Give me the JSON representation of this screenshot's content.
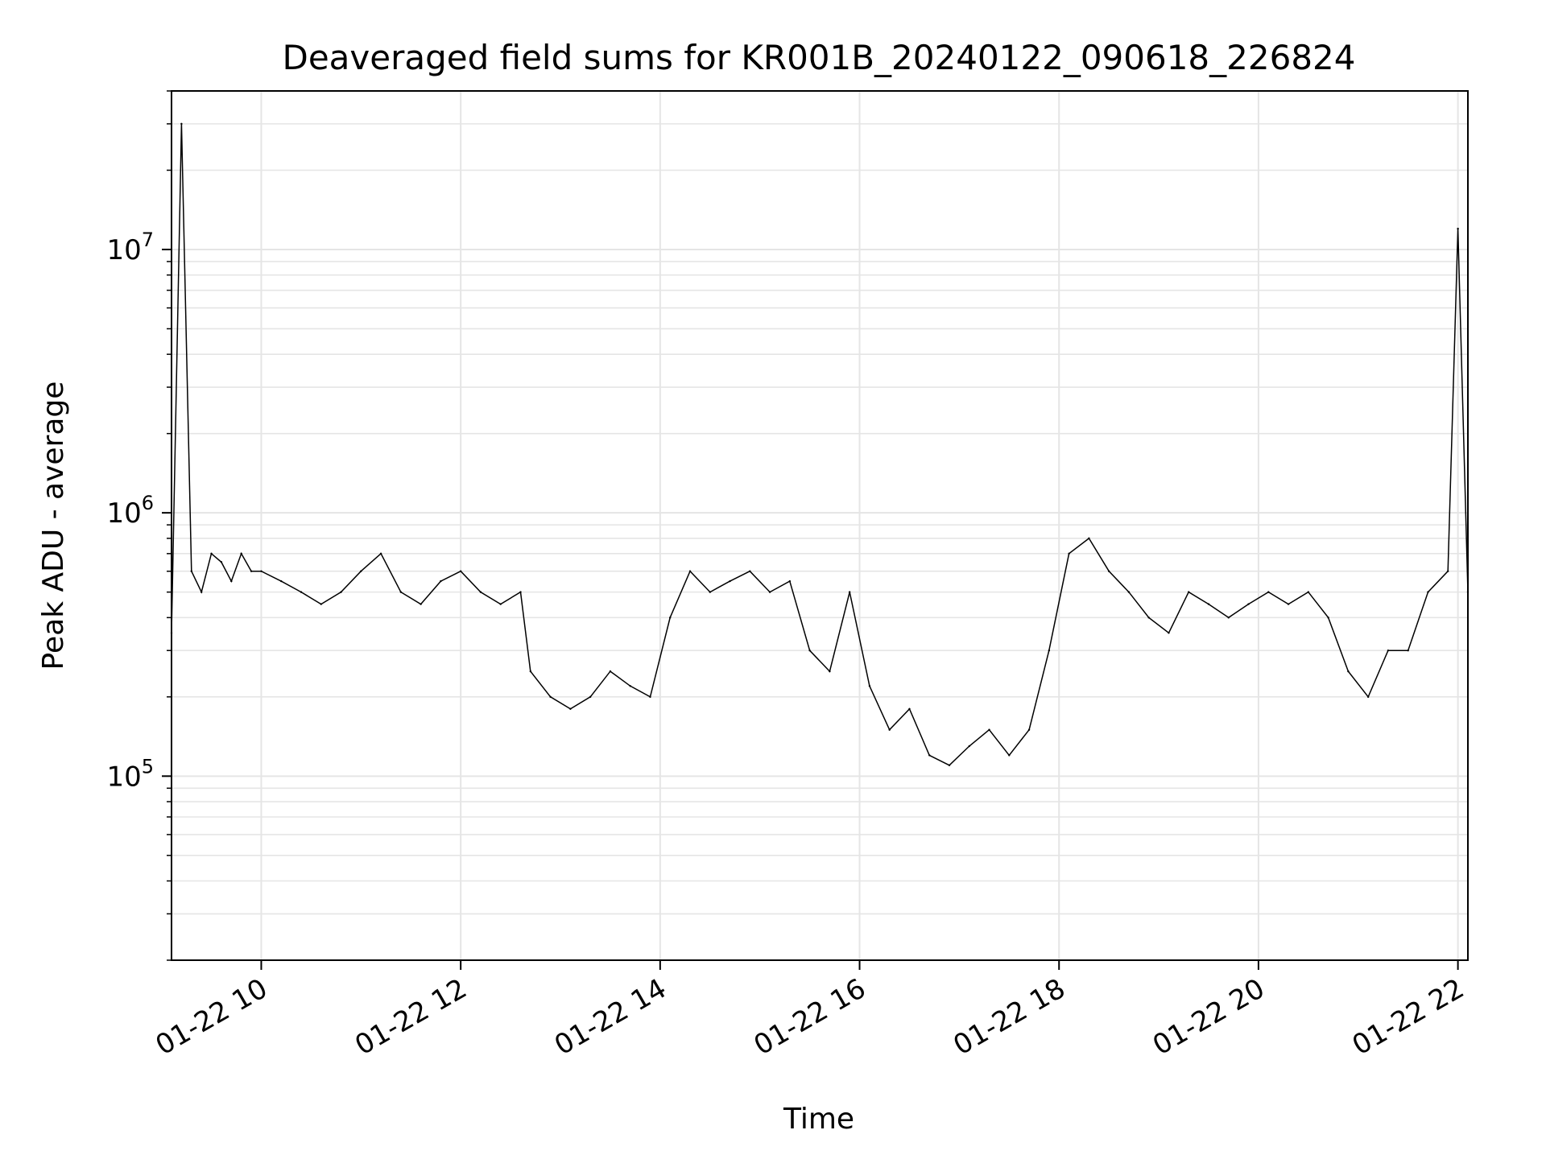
{
  "chart_data": {
    "type": "line",
    "title": "Deaveraged field sums for KR001B_20240122_090618_226824",
    "xlabel": "Time",
    "ylabel": "Peak ADU - average",
    "x_scale": "time",
    "y_scale": "log",
    "xlim": [
      "2024-01-22 09:06",
      "2024-01-22 22:06"
    ],
    "ylim": [
      20000,
      40000000
    ],
    "grid": true,
    "legend": "none",
    "line_color": "#000000",
    "grid_color": "#e5e5e5",
    "x_ticks": [
      "2024-01-22 10:00",
      "2024-01-22 12:00",
      "2024-01-22 14:00",
      "2024-01-22 16:00",
      "2024-01-22 18:00",
      "2024-01-22 20:00",
      "2024-01-22 22:00"
    ],
    "x_tick_labels": [
      "01-22 10",
      "01-22 12",
      "01-22 14",
      "01-22 16",
      "01-22 18",
      "01-22 20",
      "01-22 22"
    ],
    "y_ticks": [
      {
        "base": "10",
        "exp": "5",
        "value": 100000
      },
      {
        "base": "10",
        "exp": "6",
        "value": 1000000
      },
      {
        "base": "10",
        "exp": "7",
        "value": 10000000
      }
    ],
    "series": [
      {
        "x": [
          "2024-01-22 09:06",
          "2024-01-22 09:12",
          "2024-01-22 09:18",
          "2024-01-22 09:24",
          "2024-01-22 09:30",
          "2024-01-22 09:36",
          "2024-01-22 09:42",
          "2024-01-22 09:48",
          "2024-01-22 09:54",
          "2024-01-22 10:00",
          "2024-01-22 10:12",
          "2024-01-22 10:24",
          "2024-01-22 10:36",
          "2024-01-22 10:48",
          "2024-01-22 11:00",
          "2024-01-22 11:12",
          "2024-01-22 11:24",
          "2024-01-22 11:36",
          "2024-01-22 11:48",
          "2024-01-22 12:00",
          "2024-01-22 12:12",
          "2024-01-22 12:24",
          "2024-01-22 12:36",
          "2024-01-22 12:42",
          "2024-01-22 12:54",
          "2024-01-22 13:06",
          "2024-01-22 13:18",
          "2024-01-22 13:30",
          "2024-01-22 13:42",
          "2024-01-22 13:54",
          "2024-01-22 14:06",
          "2024-01-22 14:18",
          "2024-01-22 14:30",
          "2024-01-22 14:42",
          "2024-01-22 14:54",
          "2024-01-22 15:06",
          "2024-01-22 15:18",
          "2024-01-22 15:30",
          "2024-01-22 15:42",
          "2024-01-22 15:54",
          "2024-01-22 16:06",
          "2024-01-22 16:18",
          "2024-01-22 16:30",
          "2024-01-22 16:42",
          "2024-01-22 16:54",
          "2024-01-22 17:06",
          "2024-01-22 17:18",
          "2024-01-22 17:30",
          "2024-01-22 17:42",
          "2024-01-22 17:54",
          "2024-01-22 18:06",
          "2024-01-22 18:18",
          "2024-01-22 18:30",
          "2024-01-22 18:42",
          "2024-01-22 18:54",
          "2024-01-22 19:06",
          "2024-01-22 19:18",
          "2024-01-22 19:30",
          "2024-01-22 19:42",
          "2024-01-22 19:54",
          "2024-01-22 20:06",
          "2024-01-22 20:18",
          "2024-01-22 20:30",
          "2024-01-22 20:42",
          "2024-01-22 20:54",
          "2024-01-22 21:06",
          "2024-01-22 21:18",
          "2024-01-22 21:30",
          "2024-01-22 21:42",
          "2024-01-22 21:54",
          "2024-01-22 22:00",
          "2024-01-22 22:06"
        ],
        "y": [
          350000,
          30000000,
          600000,
          500000,
          700000,
          650000,
          550000,
          700000,
          600000,
          600000,
          550000,
          500000,
          450000,
          500000,
          600000,
          700000,
          500000,
          450000,
          550000,
          600000,
          500000,
          450000,
          500000,
          250000,
          200000,
          180000,
          200000,
          250000,
          220000,
          200000,
          400000,
          600000,
          500000,
          550000,
          600000,
          500000,
          550000,
          300000,
          250000,
          500000,
          220000,
          150000,
          180000,
          120000,
          110000,
          130000,
          150000,
          120000,
          150000,
          300000,
          700000,
          800000,
          600000,
          500000,
          400000,
          350000,
          500000,
          450000,
          400000,
          450000,
          500000,
          450000,
          500000,
          400000,
          250000,
          200000,
          300000,
          300000,
          500000,
          600000,
          12000000,
          500000
        ]
      }
    ]
  }
}
